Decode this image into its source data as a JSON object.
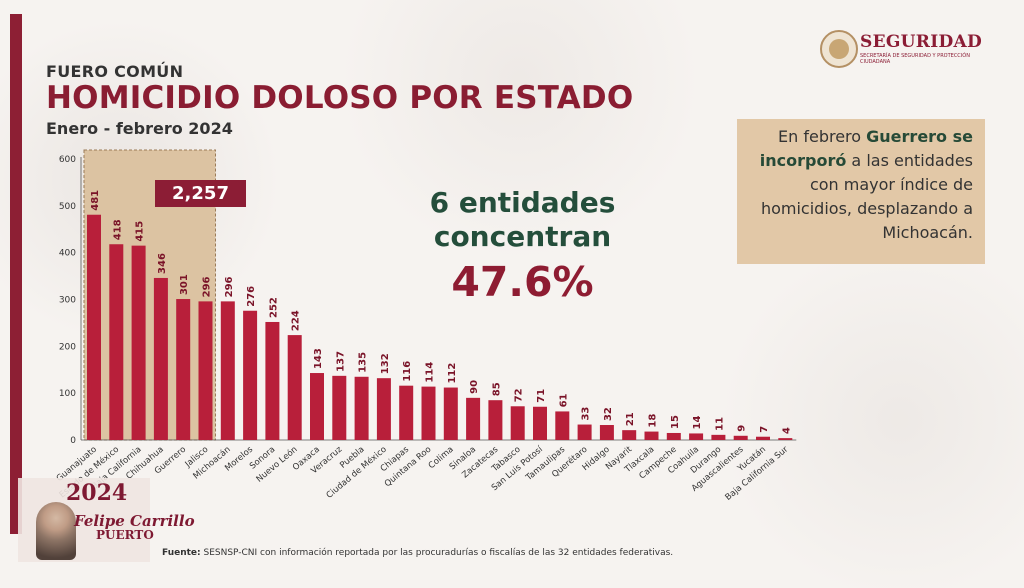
{
  "header": {
    "kicker": "FUERO COMÚN",
    "title": "HOMICIDIO DOLOSO POR ESTADO",
    "subtitle": "Enero - febrero 2024"
  },
  "logo": {
    "name": "SEGURIDAD",
    "sub": "SECRETARÍA DE SEGURIDAD Y PROTECCIÓN CIUDADANA"
  },
  "note": {
    "part1": "En febrero ",
    "bold": "Guerrero se incorporó",
    "part2": " a las entidades con mayor índice de homicidios, desplazando a Michoacán."
  },
  "highlight": {
    "line1": "6 entidades",
    "line2": "concentran",
    "percent": "47.6%",
    "total": "2,257"
  },
  "source": {
    "label": "Fuente:",
    "text": " SESNSP-CNI con información reportada por las procuradurías o fiscalías de las 32 entidades federativas."
  },
  "footer_logo": {
    "year": "2024",
    "name": "Felipe Carrillo",
    "name2": "PUERTO"
  },
  "colors": {
    "bar": "#b81f3a",
    "highlight_box": "#dcc3a2",
    "accent": "#8c1d35",
    "green": "#244e3b"
  },
  "chart_data": {
    "type": "bar",
    "title": "HOMICIDIO DOLOSO POR ESTADO",
    "ylim": [
      0,
      600
    ],
    "yticks": [
      0,
      100,
      200,
      300,
      400,
      500,
      600
    ],
    "highlight_count": 6,
    "categories": [
      "Guanajuato",
      "Estado de México",
      "Baja California",
      "Chihuahua",
      "Guerrero",
      "Jalisco",
      "Michoacán",
      "Morelos",
      "Sonora",
      "Nuevo León",
      "Oaxaca",
      "Veracruz",
      "Puebla",
      "Ciudad de México",
      "Chiapas",
      "Quintana Roo",
      "Colima",
      "Sinaloa",
      "Zacatecas",
      "Tabasco",
      "San Luis Potosí",
      "Tamaulipas",
      "Querétaro",
      "Hidalgo",
      "Nayarit",
      "Tlaxcala",
      "Campeche",
      "Coahuila",
      "Durango",
      "Aguascalientes",
      "Yucatán",
      "Baja California Sur"
    ],
    "values": [
      481,
      418,
      415,
      346,
      301,
      296,
      296,
      276,
      252,
      224,
      143,
      137,
      135,
      132,
      116,
      114,
      112,
      90,
      85,
      72,
      71,
      61,
      33,
      32,
      21,
      18,
      15,
      14,
      11,
      9,
      7,
      4
    ]
  }
}
